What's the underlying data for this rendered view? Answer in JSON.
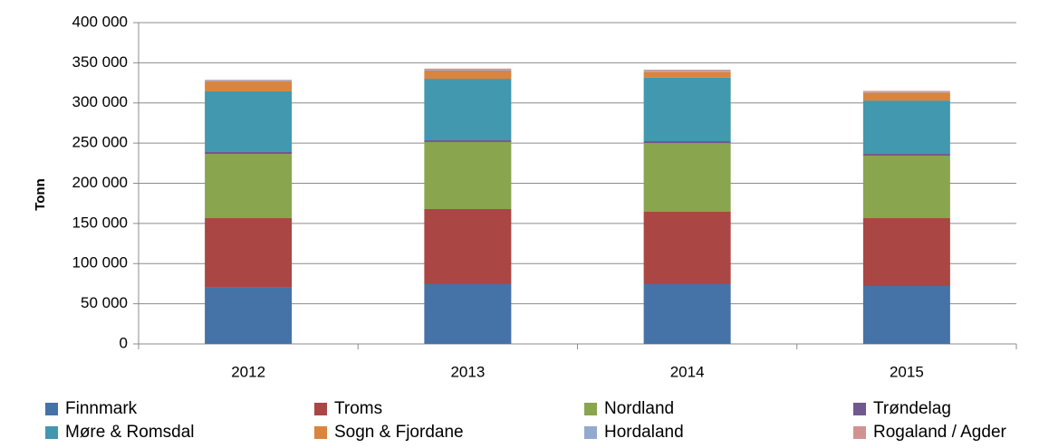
{
  "chart_data": {
    "type": "stacked-bar",
    "y_label": "Tonn",
    "categories": [
      "2012",
      "2013",
      "2014",
      "2015"
    ],
    "series": [
      {
        "name": "Finnmark",
        "color": "#4572a7",
        "values": [
          70000,
          74400,
          74400,
          72100
        ]
      },
      {
        "name": "Troms",
        "color": "#aa4643",
        "values": [
          86600,
          93500,
          90100,
          84500
        ]
      },
      {
        "name": "Nordland",
        "color": "#89a54e",
        "values": [
          80000,
          83400,
          85600,
          77800
        ]
      },
      {
        "name": "Trøndelag",
        "color": "#71588f",
        "values": [
          2300,
          2200,
          2300,
          2200
        ]
      },
      {
        "name": "Møre & Romsdal",
        "color": "#4198af",
        "values": [
          75500,
          76600,
          79000,
          66400
        ]
      },
      {
        "name": "Sogn & Fjordane",
        "color": "#db843d",
        "values": [
          12400,
          10200,
          7500,
          10000
        ]
      },
      {
        "name": "Hordaland",
        "color": "#93a9cf",
        "values": [
          1000,
          1000,
          1000,
          1000
        ]
      },
      {
        "name": "Rogaland / Agder",
        "color": "#d19392",
        "values": [
          1000,
          1500,
          1500,
          1000
        ]
      }
    ],
    "ylim": [
      0,
      400000
    ],
    "yticks": [
      0,
      {
        "value": 50000,
        "label": "50 000"
      },
      {
        "value": 100000,
        "label": "100 000"
      },
      {
        "value": 150000,
        "label": "150 000"
      },
      {
        "value": 200000,
        "label": "200 000"
      },
      {
        "value": 250000,
        "label": "250 000"
      },
      {
        "value": 300000,
        "label": "300 000"
      },
      {
        "value": 350000,
        "label": "350 000"
      },
      {
        "value": 400000,
        "label": "400 000"
      }
    ],
    "grid": true
  }
}
